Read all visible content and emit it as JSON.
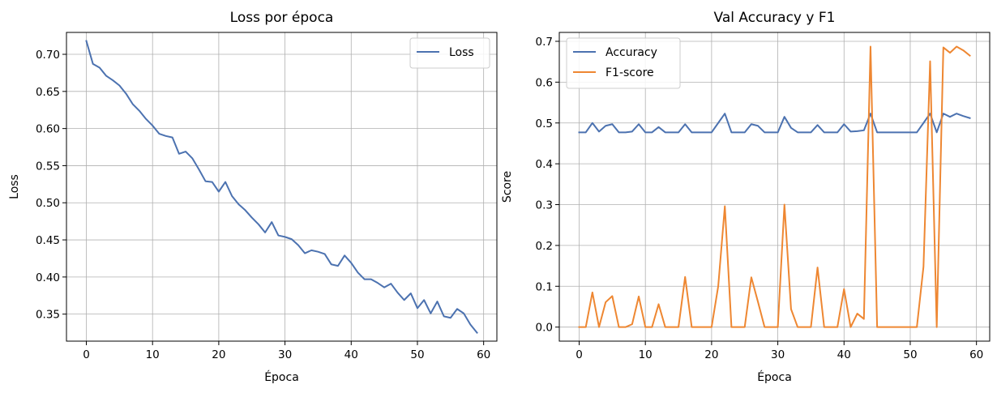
{
  "chart_data": [
    {
      "type": "line",
      "title": "Loss por época",
      "xlabel": "Época",
      "ylabel": "Loss",
      "xlim": [
        -3,
        62
      ],
      "ylim": [
        0.3136,
        0.7295
      ],
      "xticks": [
        0,
        10,
        20,
        30,
        40,
        50,
        60
      ],
      "yticks": [
        0.35,
        0.4,
        0.45,
        0.5,
        0.55,
        0.6,
        0.65,
        0.7
      ],
      "ytick_labels": [
        "0.35",
        "0.40",
        "0.45",
        "0.50",
        "0.55",
        "0.60",
        "0.65",
        "0.70"
      ],
      "grid": true,
      "legend_position": "top-right",
      "series": [
        {
          "name": "Loss",
          "color": "#4c72b0",
          "x": [
            0,
            1,
            2,
            3,
            4,
            5,
            6,
            7,
            8,
            9,
            10,
            11,
            12,
            13,
            14,
            15,
            16,
            17,
            18,
            19,
            20,
            21,
            22,
            23,
            24,
            25,
            26,
            27,
            28,
            29,
            30,
            31,
            32,
            33,
            34,
            35,
            36,
            37,
            38,
            39,
            40,
            41,
            42,
            43,
            44,
            45,
            46,
            47,
            48,
            49,
            50,
            51,
            52,
            53,
            54,
            55,
            56,
            57,
            58,
            59
          ],
          "values": [
            0.718,
            0.687,
            0.682,
            0.671,
            0.665,
            0.658,
            0.647,
            0.633,
            0.624,
            0.613,
            0.604,
            0.593,
            0.59,
            0.588,
            0.566,
            0.569,
            0.56,
            0.545,
            0.529,
            0.528,
            0.515,
            0.528,
            0.509,
            0.498,
            0.49,
            0.48,
            0.471,
            0.46,
            0.474,
            0.456,
            0.454,
            0.451,
            0.443,
            0.432,
            0.436,
            0.434,
            0.431,
            0.417,
            0.415,
            0.429,
            0.419,
            0.406,
            0.397,
            0.397,
            0.392,
            0.386,
            0.391,
            0.379,
            0.369,
            0.378,
            0.358,
            0.369,
            0.351,
            0.367,
            0.347,
            0.345,
            0.357,
            0.351,
            0.336,
            0.325
          ]
        }
      ]
    },
    {
      "type": "line",
      "title": "Val Accuracy y F1",
      "xlabel": "Época",
      "ylabel": "Score",
      "xlim": [
        -3,
        62
      ],
      "ylim": [
        -0.0344,
        0.7218
      ],
      "xticks": [
        0,
        10,
        20,
        30,
        40,
        50,
        60
      ],
      "yticks": [
        0.0,
        0.1,
        0.2,
        0.3,
        0.4,
        0.5,
        0.6,
        0.7
      ],
      "ytick_labels": [
        "0.0",
        "0.1",
        "0.2",
        "0.3",
        "0.4",
        "0.5",
        "0.6",
        "0.7"
      ],
      "grid": true,
      "legend_position": "top-left",
      "series": [
        {
          "name": "Accuracy",
          "color": "#4c72b0",
          "x": [
            0,
            1,
            2,
            3,
            4,
            5,
            6,
            7,
            8,
            9,
            10,
            11,
            12,
            13,
            14,
            15,
            16,
            17,
            18,
            19,
            20,
            21,
            22,
            23,
            24,
            25,
            26,
            27,
            28,
            29,
            30,
            31,
            32,
            33,
            34,
            35,
            36,
            37,
            38,
            39,
            40,
            41,
            42,
            43,
            44,
            45,
            46,
            47,
            48,
            49,
            50,
            51,
            52,
            53,
            54,
            55,
            56,
            57,
            58,
            59
          ],
          "values": [
            0.477,
            0.477,
            0.5,
            0.479,
            0.493,
            0.497,
            0.477,
            0.477,
            0.479,
            0.497,
            0.477,
            0.477,
            0.49,
            0.477,
            0.477,
            0.477,
            0.497,
            0.477,
            0.477,
            0.477,
            0.477,
            0.5,
            0.523,
            0.477,
            0.477,
            0.477,
            0.497,
            0.493,
            0.477,
            0.477,
            0.477,
            0.515,
            0.488,
            0.477,
            0.477,
            0.477,
            0.495,
            0.477,
            0.477,
            0.477,
            0.497,
            0.479,
            0.48,
            0.482,
            0.523,
            0.477,
            0.477,
            0.477,
            0.477,
            0.477,
            0.477,
            0.477,
            0.5,
            0.523,
            0.477,
            0.523,
            0.515,
            0.523,
            0.517,
            0.512
          ]
        },
        {
          "name": "F1-score",
          "color": "#ee8732",
          "x": [
            0,
            1,
            2,
            3,
            4,
            5,
            6,
            7,
            8,
            9,
            10,
            11,
            12,
            13,
            14,
            15,
            16,
            17,
            18,
            19,
            20,
            21,
            22,
            23,
            24,
            25,
            26,
            27,
            28,
            29,
            30,
            31,
            32,
            33,
            34,
            35,
            36,
            37,
            38,
            39,
            40,
            41,
            42,
            43,
            44,
            45,
            46,
            47,
            48,
            49,
            50,
            51,
            52,
            53,
            54,
            55,
            56,
            57,
            58,
            59
          ],
          "values": [
            0.0,
            0.0,
            0.085,
            0.0,
            0.061,
            0.076,
            0.0,
            0.0,
            0.007,
            0.075,
            0.0,
            0.0,
            0.056,
            0.0,
            0.0,
            0.0,
            0.123,
            0.0,
            0.0,
            0.0,
            0.0,
            0.1,
            0.296,
            0.0,
            0.0,
            0.0,
            0.122,
            0.062,
            0.0,
            0.0,
            0.0,
            0.3,
            0.044,
            0.0,
            0.0,
            0.0,
            0.146,
            0.0,
            0.0,
            0.0,
            0.093,
            0.0,
            0.033,
            0.02,
            0.687,
            0.0,
            0.0,
            0.0,
            0.0,
            0.0,
            0.0,
            0.0,
            0.148,
            0.651,
            0.0,
            0.685,
            0.672,
            0.687,
            0.678,
            0.665
          ]
        }
      ]
    }
  ]
}
